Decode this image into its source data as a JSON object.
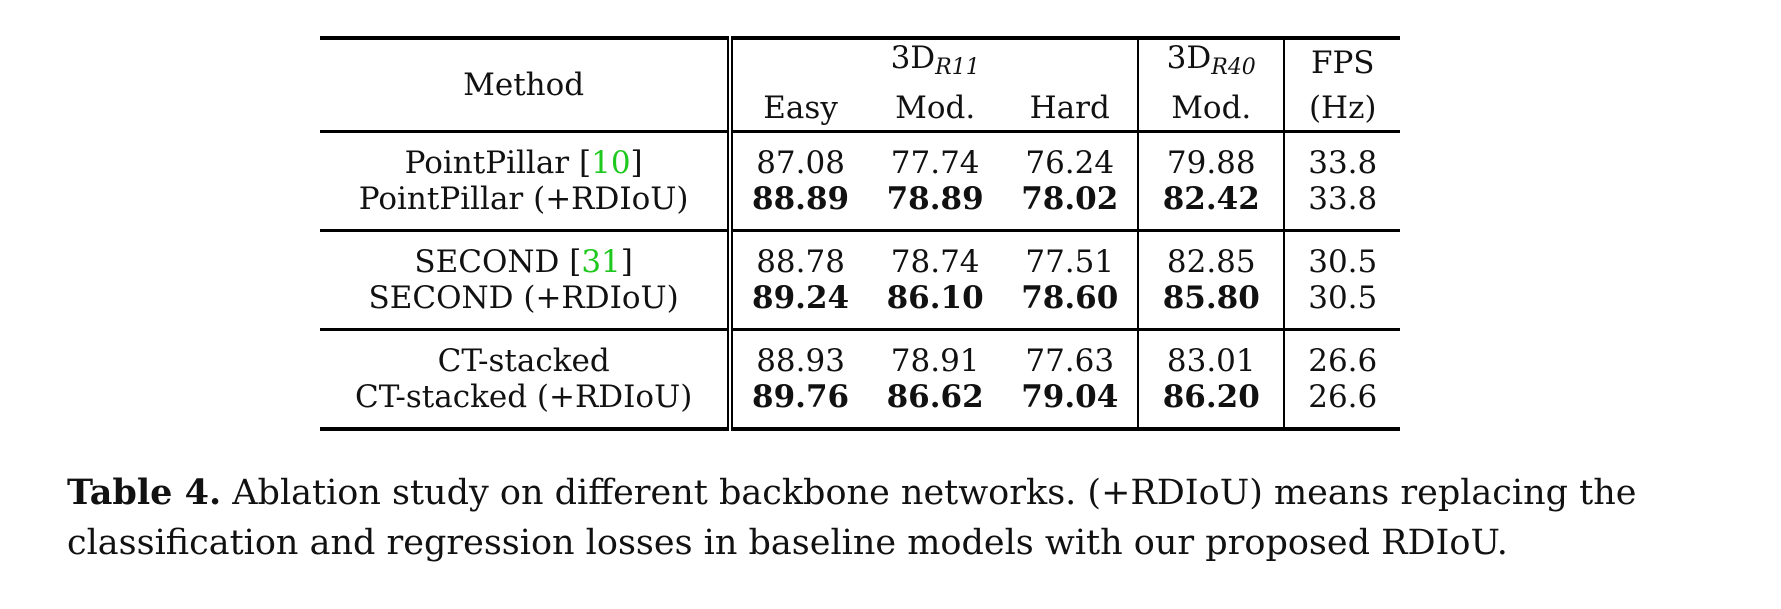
{
  "table": {
    "header": {
      "method": "Method",
      "group_r11": "3D",
      "group_r11_sub": "R11",
      "easy": "Easy",
      "mod": "Mod.",
      "hard": "Hard",
      "group_r40": "3D",
      "group_r40_sub": "R40",
      "r40_mod": "Mod.",
      "fps_top": "FPS",
      "fps_bottom": "(Hz)"
    },
    "groups": [
      {
        "rows": [
          {
            "method": "PointPillar [",
            "cite": "10",
            "cite_close": "]",
            "easy": "87.08",
            "mod": "77.74",
            "hard": "76.24",
            "r40": "79.88",
            "fps": "33.8"
          },
          {
            "method": "PointPillar (+RDIoU)",
            "easy": "88.89",
            "mod": "78.89",
            "hard": "78.02",
            "r40": "82.42",
            "fps": "33.8"
          }
        ]
      },
      {
        "rows": [
          {
            "method": "SECOND [",
            "cite": "31",
            "cite_close": "]",
            "easy": "88.78",
            "mod": "78.74",
            "hard": "77.51",
            "r40": "82.85",
            "fps": "30.5"
          },
          {
            "method": "SECOND (+RDIoU)",
            "easy": "89.24",
            "mod": "86.10",
            "hard": "78.60",
            "r40": "85.80",
            "fps": "30.5"
          }
        ]
      },
      {
        "rows": [
          {
            "method": "CT-stacked",
            "easy": "88.93",
            "mod": "78.91",
            "hard": "77.63",
            "r40": "83.01",
            "fps": "26.6"
          },
          {
            "method": "CT-stacked (+RDIoU)",
            "easy": "89.76",
            "mod": "86.62",
            "hard": "79.04",
            "r40": "86.20",
            "fps": "26.6"
          }
        ]
      }
    ]
  },
  "caption": {
    "label": "Table 4.",
    "text": " Ablation study on different backbone networks. (+RDIoU) means replacing the classification and regression losses in baseline models with our proposed RDIoU."
  }
}
